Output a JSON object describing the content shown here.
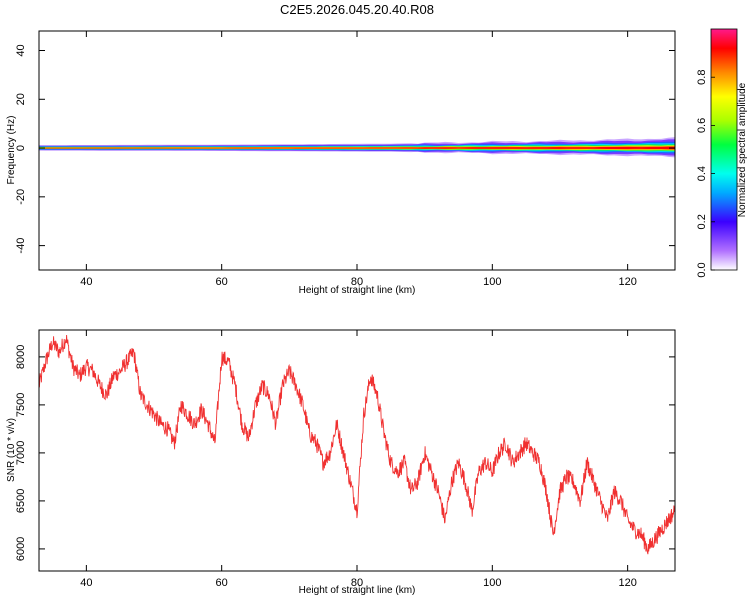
{
  "title": "C2E5.2026.045.20.40.R08",
  "colors": {
    "snr_line": "#f03030",
    "axis": "#000000",
    "background": "#ffffff"
  },
  "chart_data": [
    {
      "type": "heatmap",
      "name": "spectrogram",
      "xlabel": "Height of straight line (km)",
      "ylabel": "Frequency (Hz)",
      "xlim": [
        33,
        127
      ],
      "ylim": [
        -50,
        48
      ],
      "xticks": [
        40,
        60,
        80,
        100,
        120
      ],
      "xtick_labels": [
        "40",
        "60",
        "80",
        "100",
        "120"
      ],
      "yticks": [
        -40,
        -20,
        0,
        20,
        40
      ],
      "ytick_labels": [
        "-40",
        "-20",
        "0",
        "20",
        "40"
      ],
      "colorbar": {
        "label": "Normalized spectral amplitude",
        "range": [
          0,
          1
        ],
        "ticks": [
          0.0,
          0.2,
          0.4,
          0.6,
          0.8
        ],
        "tick_labels": [
          "0.0",
          "0.2",
          "0.4",
          "0.6",
          "0.8"
        ]
      },
      "band_center_hz": 0,
      "band_halfwidth_hz": [
        {
          "x": 33,
          "hz": 1.2
        },
        {
          "x": 60,
          "hz": 1.4
        },
        {
          "x": 85,
          "hz": 1.8
        },
        {
          "x": 100,
          "hz": 2.6
        },
        {
          "x": 110,
          "hz": 3.0
        },
        {
          "x": 120,
          "hz": 3.6
        },
        {
          "x": 127,
          "hz": 4.2
        }
      ]
    },
    {
      "type": "line",
      "name": "snr",
      "xlabel": "Height of straight line (km)",
      "ylabel": "SNR (10 * v/v)",
      "xlim": [
        33,
        127
      ],
      "ylim": [
        5770,
        8280
      ],
      "xticks": [
        40,
        60,
        80,
        100,
        120
      ],
      "xtick_labels": [
        "40",
        "60",
        "80",
        "100",
        "120"
      ],
      "yticks": [
        6000,
        6500,
        7000,
        7500,
        8000
      ],
      "ytick_labels": [
        "6000",
        "6500",
        "7000",
        "7500",
        "8000"
      ],
      "series": [
        {
          "name": "SNR",
          "points": [
            [
              33,
              7700
            ],
            [
              34,
              7950
            ],
            [
              35,
              8150
            ],
            [
              36,
              8050
            ],
            [
              37,
              8200
            ],
            [
              38,
              7900
            ],
            [
              39,
              7800
            ],
            [
              40,
              7900
            ],
            [
              41,
              7850
            ],
            [
              42,
              7700
            ],
            [
              43,
              7600
            ],
            [
              44,
              7800
            ],
            [
              45,
              7850
            ],
            [
              46,
              7950
            ],
            [
              47,
              8050
            ],
            [
              48,
              7600
            ],
            [
              49,
              7500
            ],
            [
              50,
              7400
            ],
            [
              51,
              7300
            ],
            [
              52,
              7250
            ],
            [
              53,
              7100
            ],
            [
              54,
              7500
            ],
            [
              55,
              7400
            ],
            [
              56,
              7300
            ],
            [
              57,
              7450
            ],
            [
              58,
              7300
            ],
            [
              59,
              7100
            ],
            [
              60,
              8000
            ],
            [
              61,
              7950
            ],
            [
              62,
              7700
            ],
            [
              63,
              7300
            ],
            [
              64,
              7150
            ],
            [
              65,
              7500
            ],
            [
              66,
              7700
            ],
            [
              67,
              7600
            ],
            [
              68,
              7300
            ],
            [
              69,
              7700
            ],
            [
              70,
              7850
            ],
            [
              71,
              7700
            ],
            [
              72,
              7500
            ],
            [
              73,
              7200
            ],
            [
              74,
              7100
            ],
            [
              75,
              6900
            ],
            [
              76,
              7000
            ],
            [
              77,
              7300
            ],
            [
              78,
              7000
            ],
            [
              79,
              6700
            ],
            [
              80,
              6400
            ],
            [
              81,
              7400
            ],
            [
              82,
              7800
            ],
            [
              83,
              7600
            ],
            [
              84,
              7200
            ],
            [
              85,
              6900
            ],
            [
              86,
              6800
            ],
            [
              87,
              6900
            ],
            [
              88,
              6600
            ],
            [
              89,
              6700
            ],
            [
              90,
              7000
            ],
            [
              91,
              6800
            ],
            [
              92,
              6600
            ],
            [
              93,
              6300
            ],
            [
              94,
              6700
            ],
            [
              95,
              6900
            ],
            [
              96,
              6700
            ],
            [
              97,
              6400
            ],
            [
              98,
              6800
            ],
            [
              99,
              6900
            ],
            [
              100,
              6800
            ],
            [
              101,
              7000
            ],
            [
              102,
              7100
            ],
            [
              103,
              6900
            ],
            [
              104,
              7000
            ],
            [
              105,
              7100
            ],
            [
              106,
              7000
            ],
            [
              107,
              6900
            ],
            [
              108,
              6600
            ],
            [
              109,
              6150
            ],
            [
              110,
              6600
            ],
            [
              111,
              6750
            ],
            [
              112,
              6700
            ],
            [
              113,
              6500
            ],
            [
              114,
              6900
            ],
            [
              115,
              6700
            ],
            [
              116,
              6500
            ],
            [
              117,
              6300
            ],
            [
              118,
              6600
            ],
            [
              119,
              6500
            ],
            [
              120,
              6300
            ],
            [
              121,
              6200
            ],
            [
              122,
              6150
            ],
            [
              123,
              6000
            ],
            [
              124,
              6100
            ],
            [
              125,
              6200
            ],
            [
              126,
              6300
            ],
            [
              127,
              6400
            ]
          ]
        }
      ]
    }
  ]
}
